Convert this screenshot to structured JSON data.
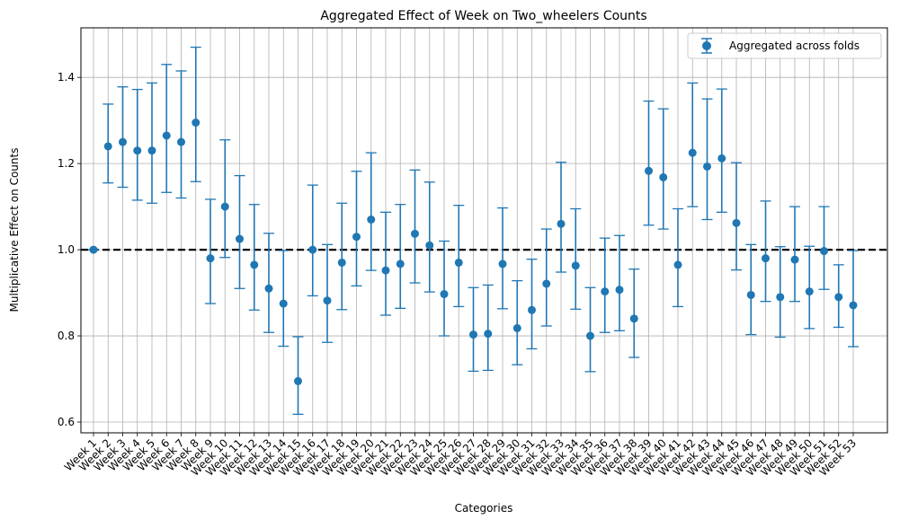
{
  "chart_data": {
    "type": "scatter",
    "title": "Aggregated Effect of Week on Two_wheelers Counts",
    "xlabel": "Categories",
    "ylabel": "Multiplicative Effect on Counts",
    "ylim": [
      0.575,
      1.515
    ],
    "yticks": [
      0.6,
      0.8,
      1.0,
      1.2,
      1.4
    ],
    "grid": true,
    "legend_position": "top-right",
    "reference_line": 1.0,
    "series": [
      {
        "name": "Aggregated across folds",
        "color": "#1f77b4",
        "marker": "circle",
        "error_bars": true
      }
    ],
    "categories": [
      "Week 1",
      "Week 2",
      "Week 3",
      "Week 4",
      "Week 5",
      "Week 6",
      "Week 7",
      "Week 8",
      "Week 9",
      "Week 10",
      "Week 11",
      "Week 12",
      "Week 13",
      "Week 14",
      "Week 15",
      "Week 16",
      "Week 17",
      "Week 18",
      "Week 19",
      "Week 20",
      "Week 21",
      "Week 22",
      "Week 23",
      "Week 24",
      "Week 25",
      "Week 26",
      "Week 27",
      "Week 28",
      "Week 29",
      "Week 30",
      "Week 31",
      "Week 32",
      "Week 33",
      "Week 34",
      "Week 35",
      "Week 36",
      "Week 37",
      "Week 38",
      "Week 39",
      "Week 40",
      "Week 41",
      "Week 42",
      "Week 43",
      "Week 44",
      "Week 45",
      "Week 46",
      "Week 47",
      "Week 48",
      "Week 49",
      "Week 50",
      "Week 51",
      "Week 52",
      "Week 53"
    ],
    "values": [
      1.0,
      1.24,
      1.25,
      1.23,
      1.23,
      1.265,
      1.25,
      1.295,
      0.98,
      1.1,
      1.025,
      0.965,
      0.91,
      0.875,
      0.695,
      1.0,
      0.882,
      0.97,
      1.03,
      1.07,
      0.952,
      0.967,
      1.037,
      1.01,
      0.897,
      0.97,
      0.803,
      0.805,
      0.967,
      0.818,
      0.86,
      0.921,
      1.06,
      0.963,
      0.8,
      0.903,
      0.907,
      0.84,
      1.183,
      1.168,
      0.965,
      1.225,
      1.193,
      1.212,
      1.062,
      0.895,
      0.98,
      0.89,
      0.977,
      0.903,
      0.997,
      0.89,
      0.871
    ],
    "lower": [
      1.0,
      1.155,
      1.145,
      1.115,
      1.108,
      1.133,
      1.12,
      1.158,
      0.875,
      0.982,
      0.91,
      0.86,
      0.808,
      0.776,
      0.618,
      0.893,
      0.785,
      0.861,
      0.916,
      0.952,
      0.848,
      0.864,
      0.923,
      0.902,
      0.8,
      0.868,
      0.718,
      0.72,
      0.863,
      0.733,
      0.77,
      0.823,
      0.948,
      0.862,
      0.717,
      0.808,
      0.812,
      0.75,
      1.057,
      1.048,
      0.868,
      1.1,
      1.07,
      1.087,
      0.953,
      0.803,
      0.88,
      0.797,
      0.88,
      0.817,
      0.908,
      0.82,
      0.775
    ],
    "upper": [
      1.0,
      1.338,
      1.378,
      1.372,
      1.387,
      1.43,
      1.415,
      1.47,
      1.117,
      1.255,
      1.172,
      1.105,
      1.038,
      0.998,
      0.798,
      1.15,
      1.012,
      1.108,
      1.182,
      1.225,
      1.087,
      1.105,
      1.185,
      1.157,
      1.02,
      1.103,
      0.912,
      0.918,
      1.097,
      0.928,
      0.978,
      1.048,
      1.203,
      1.095,
      0.912,
      1.027,
      1.033,
      0.955,
      1.345,
      1.327,
      1.095,
      1.387,
      1.35,
      1.373,
      1.202,
      1.012,
      1.113,
      1.007,
      1.1,
      1.008,
      1.1,
      0.965,
      0.998
    ]
  }
}
